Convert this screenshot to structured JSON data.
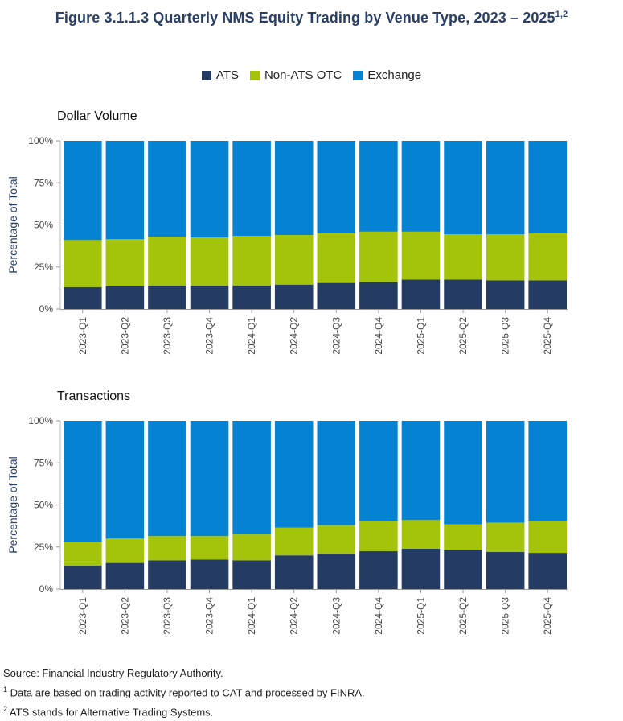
{
  "title": "Figure 3.1.1.3 Quarterly NMS Equity Trading by Venue Type, 2023 – 2025",
  "title_sup": "1,2",
  "colors": {
    "ATS": "#243b63",
    "Non-ATS OTC": "#a3c40a",
    "Exchange": "#0582d1"
  },
  "legend": [
    "ATS",
    "Non-ATS OTC",
    "Exchange"
  ],
  "chart_data": [
    {
      "type": "bar",
      "stacked": true,
      "title": "Dollar Volume",
      "ylabel": "Percentage of Total",
      "ylim": [
        0,
        100
      ],
      "yticks": [
        "0%",
        "25%",
        "50%",
        "75%",
        "100%"
      ],
      "categories": [
        "2023-Q1",
        "2023-Q2",
        "2023-Q3",
        "2023-Q4",
        "2024-Q1",
        "2024-Q2",
        "2024-Q3",
        "2024-Q4",
        "2025-Q1",
        "2025-Q2",
        "2025-Q3",
        "2025-Q4"
      ],
      "series": [
        {
          "name": "ATS",
          "values": [
            13,
            13.5,
            14,
            14,
            14,
            14.5,
            15.5,
            16,
            17.5,
            17.5,
            17,
            17
          ]
        },
        {
          "name": "Non-ATS OTC",
          "values": [
            28,
            28,
            29,
            28.5,
            29.5,
            29.5,
            29.5,
            30,
            28.5,
            27,
            27.5,
            28
          ]
        },
        {
          "name": "Exchange",
          "values": [
            59,
            58.5,
            57,
            57.5,
            56.5,
            56,
            55,
            54,
            54,
            55.5,
            55.5,
            55
          ]
        }
      ]
    },
    {
      "type": "bar",
      "stacked": true,
      "title": "Transactions",
      "ylabel": "Percentage of Total",
      "ylim": [
        0,
        100
      ],
      "yticks": [
        "0%",
        "25%",
        "50%",
        "75%",
        "100%"
      ],
      "categories": [
        "2023-Q1",
        "2023-Q2",
        "2023-Q3",
        "2023-Q4",
        "2024-Q1",
        "2024-Q2",
        "2024-Q3",
        "2024-Q4",
        "2025-Q1",
        "2025-Q2",
        "2025-Q3",
        "2025-Q4"
      ],
      "series": [
        {
          "name": "ATS",
          "values": [
            14,
            15.5,
            17,
            17.5,
            17,
            20,
            21,
            22.5,
            24,
            23,
            22,
            21.5
          ]
        },
        {
          "name": "Non-ATS OTC",
          "values": [
            14,
            14.5,
            14.5,
            14,
            15.5,
            16.5,
            17,
            18,
            17,
            15.5,
            17.5,
            19
          ]
        },
        {
          "name": "Exchange",
          "values": [
            72,
            70,
            68.5,
            68.5,
            67.5,
            63.5,
            62,
            59.5,
            59,
            61.5,
            60.5,
            59.5
          ]
        }
      ]
    }
  ],
  "notes": {
    "source": "Source: Financial Industry Regulatory Authority.",
    "note1_marker": "1",
    "note1": " Data are based on trading activity reported to CAT and processed by FINRA.",
    "note2_marker": "2",
    "note2": " ATS stands for Alternative Trading Systems."
  }
}
